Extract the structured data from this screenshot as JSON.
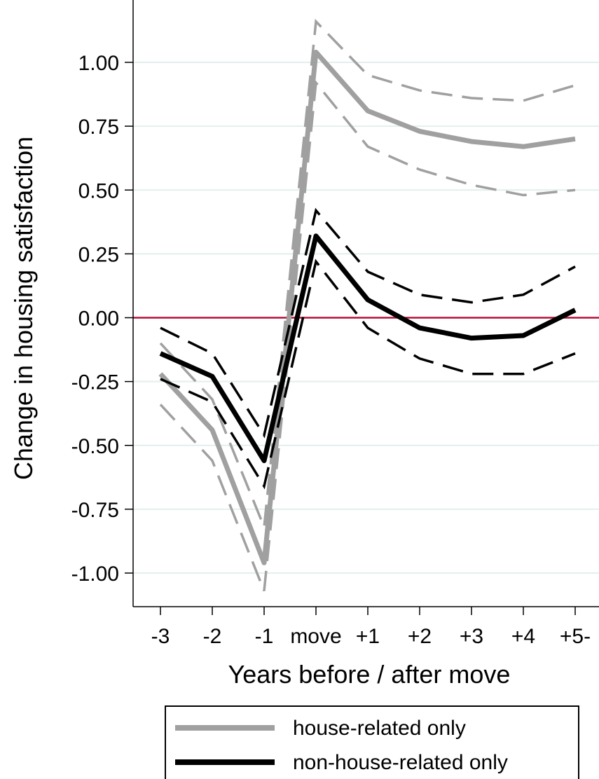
{
  "chart_data": {
    "type": "line",
    "title": "",
    "xlabel": "Years before / after move",
    "ylabel": "Change in housing satisfaction",
    "categories": [
      "-3",
      "-2",
      "-1",
      "move",
      "+1",
      "+2",
      "+3",
      "+4",
      "+5-"
    ],
    "ylim": [
      -1.14,
      1.2
    ],
    "yticks": [
      1.0,
      0.75,
      0.5,
      0.25,
      0.0,
      -0.25,
      -0.5,
      -0.75,
      -1.0
    ],
    "ytick_labels": [
      "1.00",
      "0.75",
      "0.50",
      "0.25",
      "0.00",
      "-0.25",
      "-0.50",
      "-0.75",
      "-1.00"
    ],
    "grid": true,
    "reference_line": {
      "y": 0,
      "color": "#b5103c"
    },
    "legend_placement": "bottom",
    "series": [
      {
        "name": "house-related only",
        "color": "#a0a0a0",
        "values": [
          -0.22,
          -0.44,
          -0.96,
          1.04,
          0.81,
          0.73,
          0.69,
          0.67,
          0.7
        ],
        "ci_upper": [
          -0.1,
          -0.32,
          -0.82,
          1.16,
          0.95,
          0.89,
          0.86,
          0.85,
          0.91
        ],
        "ci_lower": [
          -0.34,
          -0.56,
          -1.07,
          0.92,
          0.67,
          0.58,
          0.52,
          0.48,
          0.5
        ]
      },
      {
        "name": "non-house-related only",
        "color": "#000000",
        "values": [
          -0.14,
          -0.23,
          -0.56,
          0.32,
          0.07,
          -0.04,
          -0.08,
          -0.07,
          0.03
        ],
        "ci_upper": [
          -0.04,
          -0.14,
          -0.46,
          0.42,
          0.18,
          0.09,
          0.06,
          0.09,
          0.2
        ],
        "ci_lower": [
          -0.24,
          -0.33,
          -0.66,
          0.22,
          -0.04,
          -0.16,
          -0.22,
          -0.22,
          -0.14
        ]
      }
    ]
  }
}
